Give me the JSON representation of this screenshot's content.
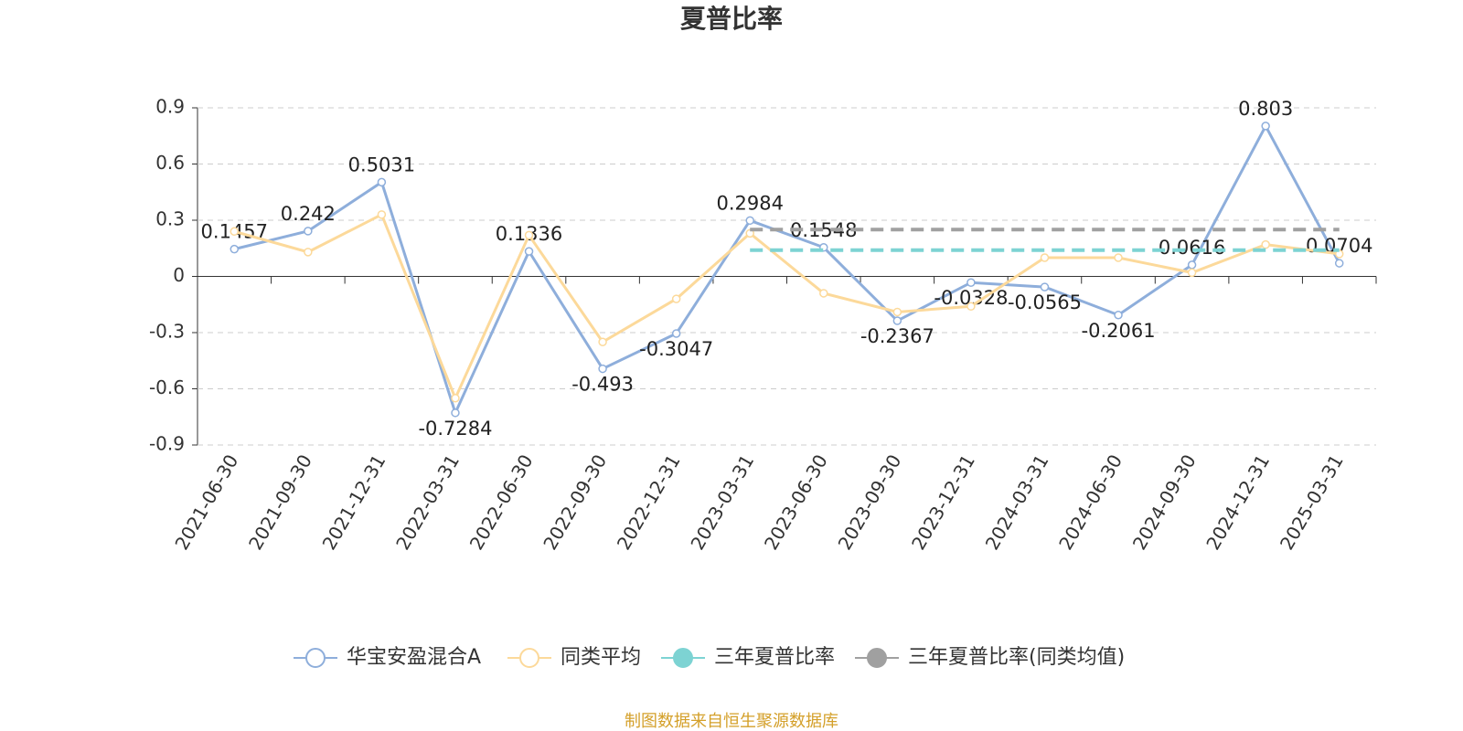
{
  "chart_data": {
    "type": "line",
    "title": "夏普比率",
    "categories": [
      "2021-06-30",
      "2021-09-30",
      "2021-12-31",
      "2022-03-31",
      "2022-06-30",
      "2022-09-30",
      "2022-12-31",
      "2023-03-31",
      "2023-06-30",
      "2023-09-30",
      "2023-12-31",
      "2024-03-31",
      "2024-06-30",
      "2024-09-30",
      "2024-12-31",
      "2025-03-31"
    ],
    "series": [
      {
        "name": "华宝安盈混合A",
        "color": "#8eaedb",
        "marker": "hollow",
        "labels": true,
        "values": [
          0.1457,
          0.242,
          0.5031,
          -0.7284,
          0.1336,
          -0.493,
          -0.3047,
          0.2984,
          0.1548,
          -0.2367,
          -0.0328,
          -0.0565,
          -0.2061,
          0.0616,
          0.803,
          0.0704
        ]
      },
      {
        "name": "同类平均",
        "color": "#fcd99a",
        "marker": "hollow",
        "labels": false,
        "values": [
          0.24,
          0.13,
          0.33,
          -0.65,
          0.22,
          -0.35,
          -0.12,
          0.23,
          -0.09,
          -0.19,
          -0.16,
          0.1,
          0.1,
          0.02,
          0.17,
          0.12
        ]
      },
      {
        "name": "三年夏普比率",
        "color": "#7dd3d3",
        "marker": "none",
        "dashed": true,
        "labels": false,
        "values": [
          null,
          null,
          null,
          null,
          null,
          null,
          null,
          0.14,
          0.14,
          0.14,
          0.14,
          0.14,
          0.14,
          0.14,
          0.14,
          0.14
        ]
      },
      {
        "name": "三年夏普比率(同类均值)",
        "color": "#a0a0a0",
        "marker": "none",
        "dashed": true,
        "labels": false,
        "values": [
          null,
          null,
          null,
          null,
          null,
          null,
          null,
          0.25,
          0.25,
          0.25,
          0.25,
          0.25,
          0.25,
          0.25,
          0.25,
          0.25
        ]
      }
    ],
    "ylim": [
      -0.9,
      0.9
    ],
    "yticks": [
      -0.9,
      -0.6,
      -0.3,
      0,
      0.3,
      0.6,
      0.9
    ],
    "grid": true,
    "source": "制图数据来自恒生聚源数据库"
  }
}
